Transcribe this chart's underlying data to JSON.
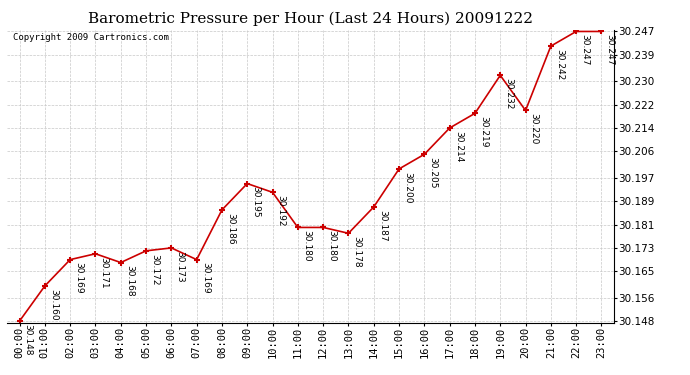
{
  "title": "Barometric Pressure per Hour (Last 24 Hours) 20091222",
  "copyright": "Copyright 2009 Cartronics.com",
  "hours": [
    "00:00",
    "01:00",
    "02:00",
    "03:00",
    "04:00",
    "05:00",
    "06:00",
    "07:00",
    "08:00",
    "09:00",
    "10:00",
    "11:00",
    "12:00",
    "13:00",
    "14:00",
    "15:00",
    "16:00",
    "17:00",
    "18:00",
    "19:00",
    "20:00",
    "21:00",
    "22:00",
    "23:00"
  ],
  "values": [
    30.148,
    30.16,
    30.169,
    30.171,
    30.168,
    30.172,
    30.173,
    30.169,
    30.186,
    30.195,
    30.192,
    30.18,
    30.18,
    30.178,
    30.187,
    30.2,
    30.205,
    30.214,
    30.219,
    30.232,
    30.22,
    30.242,
    30.247,
    30.247
  ],
  "ylim_min": 30.148,
  "ylim_max": 30.247,
  "yticks": [
    30.148,
    30.156,
    30.165,
    30.173,
    30.181,
    30.189,
    30.197,
    30.206,
    30.214,
    30.222,
    30.23,
    30.239,
    30.247
  ],
  "line_color": "#cc0000",
  "marker_color": "#cc0000",
  "bg_color": "#ffffff",
  "plot_bg_color": "#ffffff",
  "grid_color": "#c8c8c8",
  "title_fontsize": 11,
  "copyright_fontsize": 6.5,
  "label_fontsize": 6.5,
  "tick_fontsize": 7.5
}
